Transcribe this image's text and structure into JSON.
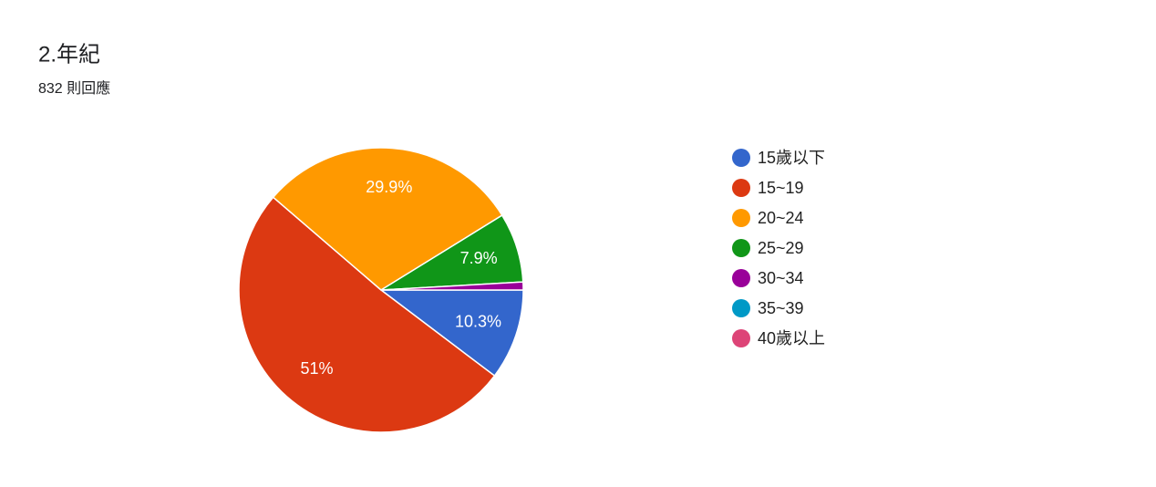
{
  "chart_data": {
    "type": "pie",
    "title": "2.年紀",
    "subtitle": "832 則回應",
    "categories": [
      "15歲以下",
      "15~19",
      "20~24",
      "25~29",
      "30~34",
      "35~39",
      "40歲以上"
    ],
    "values": [
      10.3,
      51,
      29.9,
      7.9,
      0.9,
      0,
      0
    ],
    "value_labels": [
      "10.3%",
      "51%",
      "29.9%",
      "7.9%",
      null,
      null,
      null
    ],
    "colors": [
      "#3366cc",
      "#dc3912",
      "#ff9900",
      "#109618",
      "#990099",
      "#0099c6",
      "#dd4477"
    ],
    "legend": "right"
  }
}
